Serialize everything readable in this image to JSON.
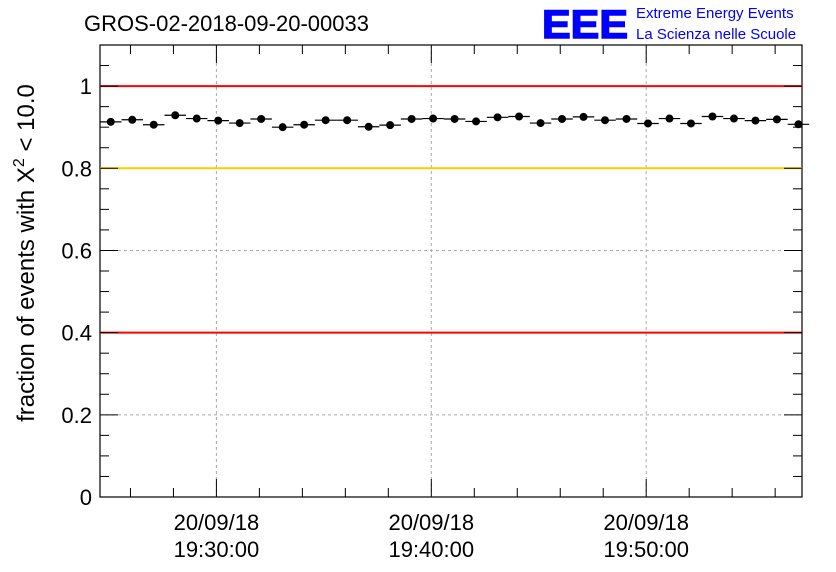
{
  "title": "GROS-02-2018-09-20-00033",
  "logo": {
    "mark": "EEE",
    "line1": "Extreme Energy Events",
    "line2": "La Scienza nelle Scuole",
    "color": "#0000ff"
  },
  "chart_data": {
    "type": "scatter",
    "title": "GROS-02-2018-09-20-00033",
    "ylabel_prefix": "fraction of events with ",
    "ylabel_symbol": "X",
    "ylabel_sup": "2",
    "ylabel_suffix": " < 10.0",
    "ylim": [
      0,
      1.1
    ],
    "xlim": [
      "2018-09-20 19:24:35",
      "2018-09-20 19:57:15"
    ],
    "x_ticks": [
      {
        "x": "2018-09-20 19:30:00",
        "date": "20/09/18",
        "time": "19:30:00"
      },
      {
        "x": "2018-09-20 19:40:00",
        "date": "20/09/18",
        "time": "19:40:00"
      },
      {
        "x": "2018-09-20 19:50:00",
        "date": "20/09/18",
        "time": "19:50:00"
      }
    ],
    "y_ticks": [
      "0",
      "0.2",
      "0.4",
      "0.6",
      "0.8",
      "1"
    ],
    "grid": true,
    "reference_lines": [
      {
        "y": 1.0,
        "color": "#ff0000"
      },
      {
        "y": 0.8,
        "color": "#ffcc00"
      },
      {
        "y": 0.4,
        "color": "#ff0000"
      }
    ],
    "series": [
      {
        "color": "#000000",
        "bin_width_seconds": 60,
        "x": [
          "2018-09-20 19:25:05",
          "2018-09-20 19:26:05",
          "2018-09-20 19:27:05",
          "2018-09-20 19:28:05",
          "2018-09-20 19:29:05",
          "2018-09-20 19:30:05",
          "2018-09-20 19:31:05",
          "2018-09-20 19:32:05",
          "2018-09-20 19:33:05",
          "2018-09-20 19:34:05",
          "2018-09-20 19:35:05",
          "2018-09-20 19:36:05",
          "2018-09-20 19:37:05",
          "2018-09-20 19:38:05",
          "2018-09-20 19:39:05",
          "2018-09-20 19:40:05",
          "2018-09-20 19:41:05",
          "2018-09-20 19:42:05",
          "2018-09-20 19:43:05",
          "2018-09-20 19:44:05",
          "2018-09-20 19:45:05",
          "2018-09-20 19:46:05",
          "2018-09-20 19:47:05",
          "2018-09-20 19:48:05",
          "2018-09-20 19:49:05",
          "2018-09-20 19:50:05",
          "2018-09-20 19:51:05",
          "2018-09-20 19:52:05",
          "2018-09-20 19:53:05",
          "2018-09-20 19:54:05",
          "2018-09-20 19:55:05",
          "2018-09-20 19:56:05",
          "2018-09-20 19:57:05"
        ],
        "y": [
          0.913,
          0.918,
          0.906,
          0.929,
          0.921,
          0.916,
          0.91,
          0.92,
          0.9,
          0.906,
          0.917,
          0.917,
          0.901,
          0.905,
          0.92,
          0.921,
          0.92,
          0.914,
          0.924,
          0.926,
          0.91,
          0.92,
          0.925,
          0.917,
          0.92,
          0.909,
          0.921,
          0.909,
          0.926,
          0.921,
          0.916,
          0.919,
          0.907
        ]
      }
    ]
  }
}
